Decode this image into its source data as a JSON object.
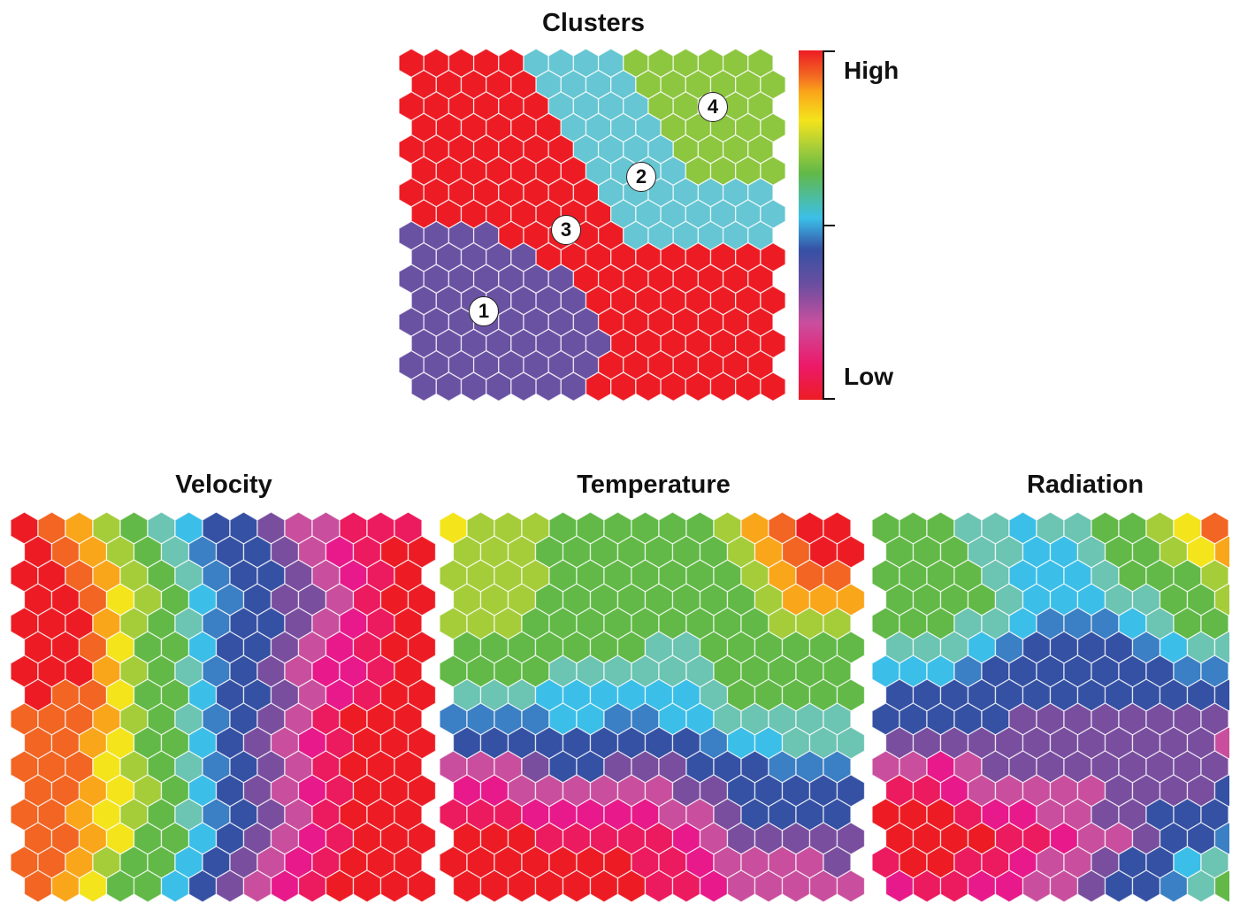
{
  "chart_data": {
    "type": "heatmap",
    "description_type": "self-organizing-map hexagonal grids",
    "colormap": {
      "levels_low_to_high": [
        "#ed1c24",
        "#ec1a5e",
        "#e8198b",
        "#c94f9e",
        "#7a4e9f",
        "#3551a4",
        "#3b7fc4",
        "#3bbfe8",
        "#6cc4b2",
        "#62b947",
        "#a5cd39",
        "#f4e41c",
        "#faa61a",
        "#f26522",
        "#ed1c24"
      ],
      "high_label": "High",
      "low_label": "Low"
    },
    "clusters": {
      "title": "Clusters",
      "cluster_colors": {
        "1": "#6a52a3",
        "2": "#66c6d3",
        "3": "#ed1c24",
        "4": "#8dc63f"
      },
      "labels": [
        "1",
        "2",
        "3",
        "4"
      ],
      "grid": [
        [
          3,
          3,
          3,
          3,
          3,
          2,
          2,
          2,
          2,
          4,
          4,
          4,
          4,
          4,
          4
        ],
        [
          3,
          3,
          3,
          3,
          3,
          2,
          2,
          2,
          2,
          4,
          4,
          4,
          4,
          4,
          4
        ],
        [
          3,
          3,
          3,
          3,
          3,
          3,
          2,
          2,
          2,
          2,
          4,
          4,
          4,
          4,
          4
        ],
        [
          3,
          3,
          3,
          3,
          3,
          3,
          2,
          2,
          2,
          2,
          4,
          4,
          4,
          4,
          4
        ],
        [
          3,
          3,
          3,
          3,
          3,
          3,
          3,
          2,
          2,
          2,
          2,
          4,
          4,
          4,
          4
        ],
        [
          3,
          3,
          3,
          3,
          3,
          3,
          3,
          2,
          2,
          2,
          2,
          4,
          4,
          4,
          4
        ],
        [
          3,
          3,
          3,
          3,
          3,
          3,
          3,
          3,
          2,
          2,
          2,
          2,
          2,
          2,
          2
        ],
        [
          3,
          3,
          3,
          3,
          3,
          3,
          3,
          3,
          2,
          2,
          2,
          2,
          2,
          2,
          2
        ],
        [
          1,
          1,
          1,
          1,
          3,
          3,
          3,
          3,
          3,
          2,
          2,
          2,
          2,
          2,
          2
        ],
        [
          1,
          1,
          1,
          1,
          1,
          3,
          3,
          3,
          3,
          3,
          3,
          3,
          3,
          3,
          3
        ],
        [
          1,
          1,
          1,
          1,
          1,
          1,
          1,
          3,
          3,
          3,
          3,
          3,
          3,
          3,
          3
        ],
        [
          1,
          1,
          1,
          1,
          1,
          1,
          1,
          3,
          3,
          3,
          3,
          3,
          3,
          3,
          3
        ],
        [
          1,
          1,
          1,
          1,
          1,
          1,
          1,
          1,
          3,
          3,
          3,
          3,
          3,
          3,
          3
        ],
        [
          1,
          1,
          1,
          1,
          1,
          1,
          1,
          1,
          3,
          3,
          3,
          3,
          3,
          3,
          3
        ],
        [
          1,
          1,
          1,
          1,
          1,
          1,
          1,
          1,
          3,
          3,
          3,
          3,
          3,
          3,
          3
        ],
        [
          1,
          1,
          1,
          1,
          1,
          1,
          1,
          3,
          3,
          3,
          3,
          3,
          3,
          3,
          3
        ]
      ]
    },
    "maps": [
      {
        "title": "Velocity",
        "grid": [
          [
            14,
            13,
            12,
            10,
            9,
            8,
            7,
            5,
            5,
            4,
            3,
            3,
            1,
            1,
            1
          ],
          [
            14,
            13,
            12,
            10,
            9,
            8,
            6,
            5,
            5,
            4,
            3,
            2,
            1,
            0,
            0
          ],
          [
            14,
            14,
            13,
            12,
            10,
            9,
            8,
            6,
            5,
            5,
            4,
            3,
            2,
            1,
            0
          ],
          [
            14,
            14,
            13,
            11,
            10,
            9,
            7,
            6,
            5,
            4,
            4,
            3,
            1,
            0,
            0
          ],
          [
            14,
            14,
            14,
            12,
            10,
            9,
            8,
            6,
            5,
            5,
            4,
            3,
            2,
            1,
            0
          ],
          [
            14,
            14,
            13,
            11,
            9,
            9,
            7,
            5,
            5,
            4,
            3,
            2,
            1,
            0,
            0
          ],
          [
            14,
            14,
            14,
            12,
            10,
            9,
            8,
            6,
            5,
            4,
            3,
            2,
            2,
            1,
            0
          ],
          [
            14,
            13,
            13,
            11,
            9,
            9,
            7,
            5,
            5,
            4,
            3,
            2,
            1,
            0,
            0
          ],
          [
            13,
            13,
            13,
            12,
            10,
            9,
            8,
            6,
            5,
            4,
            3,
            1,
            0,
            0,
            0
          ],
          [
            13,
            13,
            12,
            11,
            9,
            9,
            7,
            5,
            4,
            3,
            2,
            1,
            0,
            0,
            0
          ],
          [
            13,
            13,
            13,
            11,
            10,
            9,
            8,
            6,
            5,
            4,
            3,
            1,
            0,
            0,
            0
          ],
          [
            13,
            13,
            12,
            11,
            10,
            9,
            7,
            5,
            4,
            3,
            2,
            1,
            0,
            0,
            0
          ],
          [
            13,
            13,
            12,
            11,
            10,
            9,
            8,
            6,
            5,
            4,
            3,
            1,
            0,
            0,
            0
          ],
          [
            13,
            13,
            12,
            11,
            9,
            9,
            7,
            5,
            4,
            3,
            2,
            1,
            0,
            0,
            0
          ],
          [
            13,
            13,
            12,
            10,
            9,
            9,
            7,
            5,
            4,
            3,
            2,
            1,
            0,
            0,
            0
          ],
          [
            13,
            12,
            11,
            9,
            9,
            7,
            5,
            4,
            3,
            2,
            1,
            0,
            0,
            0,
            0
          ]
        ]
      },
      {
        "title": "Temperature",
        "grid": [
          [
            11,
            10,
            10,
            10,
            9,
            9,
            9,
            9,
            9,
            9,
            10,
            12,
            13,
            14,
            14
          ],
          [
            10,
            10,
            10,
            9,
            9,
            9,
            9,
            9,
            9,
            9,
            10,
            12,
            13,
            14,
            14
          ],
          [
            10,
            10,
            10,
            10,
            9,
            9,
            9,
            9,
            9,
            9,
            9,
            10,
            12,
            13,
            13
          ],
          [
            10,
            10,
            10,
            9,
            9,
            9,
            9,
            9,
            9,
            9,
            9,
            10,
            12,
            12,
            12
          ],
          [
            10,
            10,
            10,
            9,
            9,
            9,
            9,
            9,
            9,
            9,
            9,
            9,
            10,
            10,
            10
          ],
          [
            9,
            9,
            9,
            9,
            9,
            9,
            9,
            8,
            8,
            9,
            9,
            9,
            9,
            9,
            9
          ],
          [
            9,
            9,
            9,
            9,
            8,
            8,
            8,
            8,
            8,
            8,
            9,
            9,
            9,
            9,
            9
          ],
          [
            8,
            8,
            8,
            7,
            7,
            7,
            7,
            7,
            7,
            8,
            9,
            9,
            9,
            9,
            9
          ],
          [
            6,
            6,
            6,
            6,
            7,
            7,
            6,
            6,
            7,
            7,
            8,
            8,
            8,
            8,
            8
          ],
          [
            5,
            5,
            5,
            5,
            5,
            5,
            5,
            5,
            5,
            6,
            7,
            7,
            8,
            8,
            8
          ],
          [
            3,
            3,
            3,
            4,
            5,
            5,
            4,
            4,
            4,
            5,
            5,
            5,
            6,
            6,
            6
          ],
          [
            2,
            2,
            3,
            3,
            3,
            3,
            3,
            3,
            4,
            4,
            5,
            5,
            5,
            5,
            5
          ],
          [
            1,
            1,
            1,
            2,
            2,
            2,
            2,
            2,
            3,
            3,
            4,
            5,
            5,
            5,
            5
          ],
          [
            0,
            0,
            0,
            1,
            1,
            1,
            1,
            1,
            2,
            3,
            4,
            4,
            4,
            4,
            4
          ],
          [
            0,
            0,
            0,
            0,
            0,
            0,
            0,
            1,
            1,
            2,
            3,
            3,
            3,
            3,
            4
          ],
          [
            0,
            0,
            0,
            0,
            0,
            0,
            0,
            1,
            1,
            2,
            3,
            3,
            3,
            3,
            3
          ]
        ]
      },
      {
        "title": "Radiation",
        "grid": [
          [
            9,
            9,
            9,
            8,
            8,
            7,
            8,
            8,
            9,
            9,
            10,
            11,
            13
          ],
          [
            9,
            9,
            9,
            8,
            8,
            7,
            7,
            8,
            9,
            9,
            10,
            11,
            12
          ],
          [
            9,
            9,
            9,
            9,
            8,
            7,
            7,
            7,
            8,
            9,
            9,
            9,
            10
          ],
          [
            9,
            9,
            9,
            9,
            8,
            7,
            7,
            7,
            8,
            8,
            9,
            9,
            10
          ],
          [
            9,
            9,
            9,
            8,
            8,
            7,
            6,
            6,
            6,
            7,
            8,
            9,
            9
          ],
          [
            8,
            8,
            8,
            7,
            6,
            5,
            5,
            5,
            5,
            6,
            7,
            8,
            8
          ],
          [
            7,
            7,
            7,
            6,
            5,
            5,
            5,
            5,
            5,
            5,
            5,
            6,
            6
          ],
          [
            5,
            5,
            5,
            5,
            5,
            5,
            5,
            5,
            5,
            5,
            5,
            5,
            5
          ],
          [
            5,
            5,
            5,
            5,
            5,
            4,
            4,
            4,
            4,
            4,
            4,
            4,
            4
          ],
          [
            4,
            4,
            4,
            4,
            4,
            4,
            4,
            4,
            4,
            4,
            4,
            4,
            3
          ],
          [
            3,
            3,
            2,
            3,
            4,
            4,
            4,
            4,
            4,
            4,
            4,
            4,
            4
          ],
          [
            1,
            1,
            2,
            3,
            3,
            3,
            3,
            3,
            4,
            4,
            4,
            4,
            5
          ],
          [
            0,
            0,
            0,
            1,
            2,
            2,
            3,
            3,
            4,
            4,
            5,
            5,
            5
          ],
          [
            0,
            0,
            0,
            0,
            1,
            1,
            2,
            3,
            3,
            4,
            5,
            5,
            6
          ],
          [
            1,
            0,
            0,
            1,
            1,
            2,
            3,
            3,
            4,
            5,
            5,
            7,
            8
          ],
          [
            2,
            1,
            1,
            2,
            2,
            3,
            3,
            4,
            5,
            5,
            6,
            8,
            9
          ]
        ]
      }
    ]
  }
}
